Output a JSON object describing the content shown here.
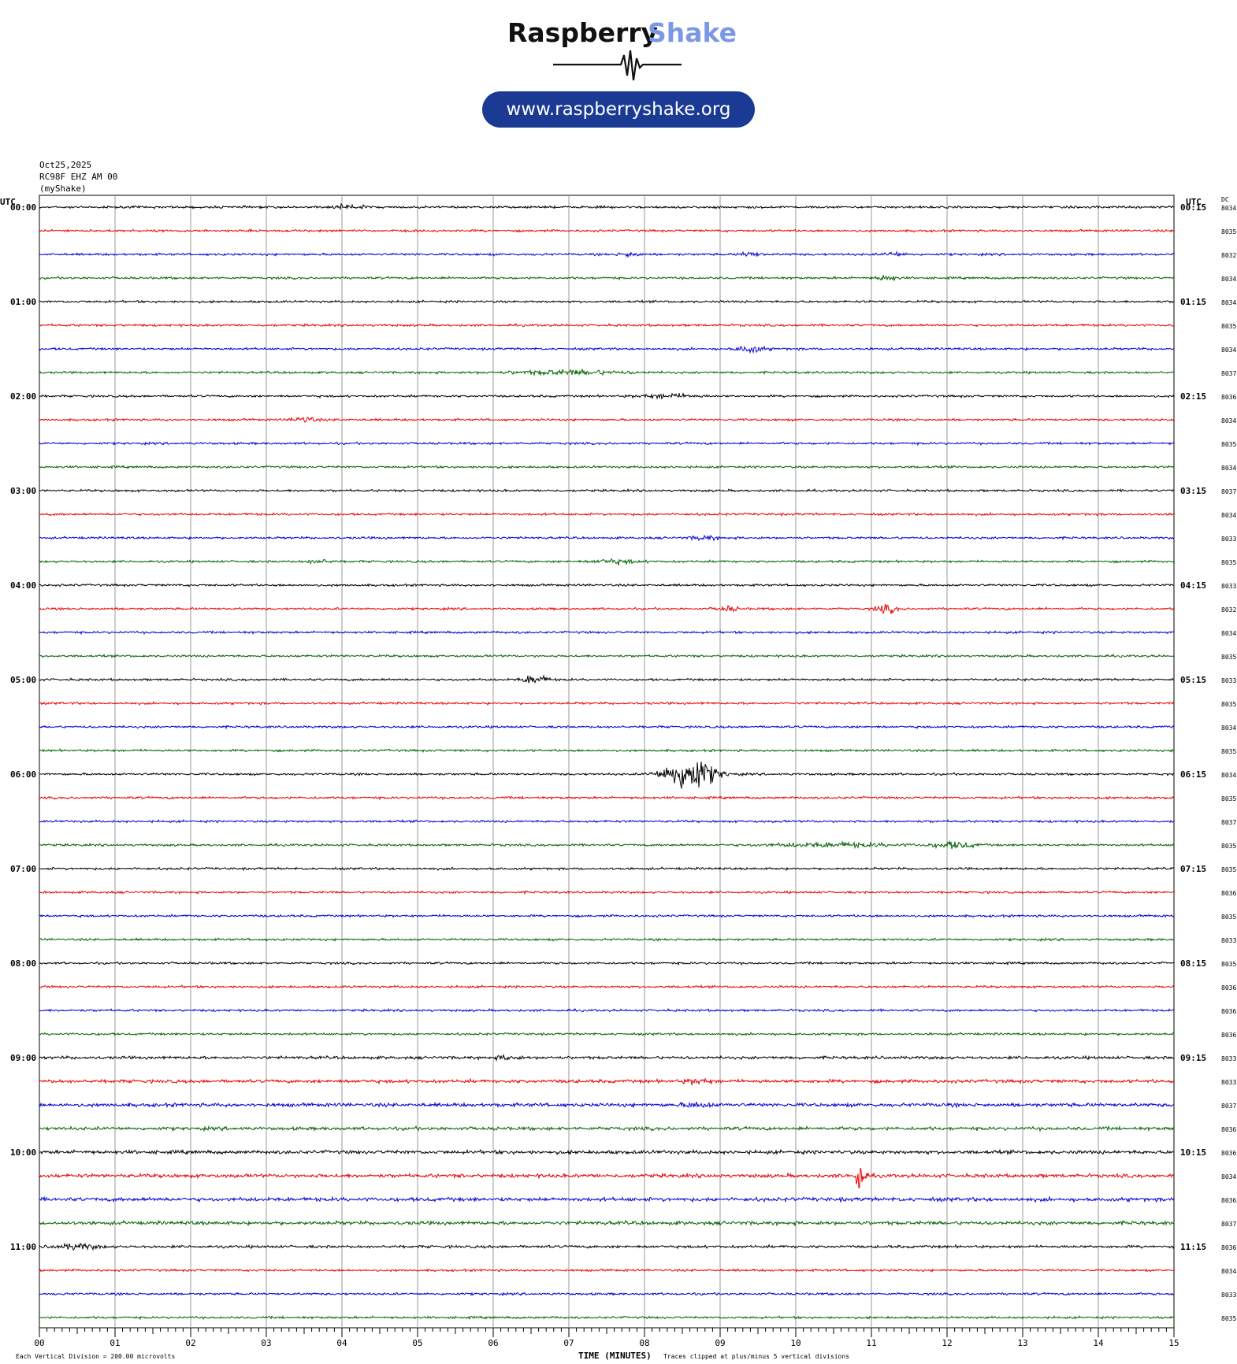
{
  "header": {
    "brand_part1": "Raspberry",
    "brand_part2": "Shake",
    "brand_color1": "#111111",
    "brand_color2": "#7b97e6",
    "website": "www.raspberryshake.org",
    "pill_color": "#1a3a94"
  },
  "meta": {
    "date": "Oct25,2025",
    "station": "RC98F EHZ AM 00",
    "network": "(myShake)"
  },
  "chart_data": {
    "type": "line",
    "description_labels": {
      "left_axis_title": "UTC",
      "right_axis_title": "UTC",
      "dc_title": "DC",
      "xlabel": "TIME (MINUTES)",
      "scale_note": "Each Vertical Division =  200.00 microvolts",
      "clip_note": "Traces clipped at plus/minus 5 vertical divisions"
    },
    "x_ticks": [
      "00",
      "01",
      "02",
      "03",
      "04",
      "05",
      "06",
      "07",
      "08",
      "09",
      "10",
      "11",
      "12",
      "13",
      "14",
      "15"
    ],
    "xlim": [
      0,
      15
    ],
    "minutes_per_trace": 15,
    "trace_colors": [
      "#000000",
      "#e60000",
      "#0000d0",
      "#006400"
    ],
    "left_hour_labels": [
      "00:00",
      "01:00",
      "02:00",
      "03:00",
      "04:00",
      "05:00",
      "06:00",
      "07:00",
      "08:00",
      "09:00",
      "10:00",
      "11:00"
    ],
    "right_hour_labels": [
      "00:15",
      "01:15",
      "02:15",
      "03:15",
      "04:15",
      "05:15",
      "06:15",
      "07:15",
      "08:15",
      "09:15",
      "10:15",
      "11:15"
    ],
    "dc_values": [
      "8034",
      "8035",
      "8032",
      "8034",
      "8034",
      "8035",
      "8034",
      "8037",
      "8036",
      "8034",
      "8035",
      "8034",
      "8037",
      "8034",
      "8033",
      "8035",
      "8033",
      "8032",
      "8034",
      "8035",
      "8033",
      "8035",
      "8034",
      "8035",
      "8034",
      "8035",
      "8037",
      "8035",
      "8035",
      "8036",
      "8035",
      "8033",
      "8035",
      "8036",
      "8036",
      "8036",
      "8033",
      "8033",
      "8037",
      "8036",
      "8036",
      "8034",
      "8036",
      "8037",
      "8036",
      "8034",
      "8033",
      "8035"
    ],
    "events": [
      {
        "trace": 0,
        "minute": 4.1,
        "amp": 1.5,
        "width": 0.4
      },
      {
        "trace": 2,
        "minute": 7.8,
        "amp": 1.3,
        "width": 0.3
      },
      {
        "trace": 2,
        "minute": 9.4,
        "amp": 1.4,
        "width": 0.3
      },
      {
        "trace": 2,
        "minute": 11.3,
        "amp": 1.3,
        "width": 0.3
      },
      {
        "trace": 3,
        "minute": 11.2,
        "amp": 1.8,
        "width": 0.3
      },
      {
        "trace": 6,
        "minute": 9.4,
        "amp": 2.2,
        "width": 0.4
      },
      {
        "trace": 7,
        "minute": 7.0,
        "amp": 1.4,
        "width": 1.6
      },
      {
        "trace": 8,
        "minute": 8.3,
        "amp": 1.3,
        "width": 0.8
      },
      {
        "trace": 9,
        "minute": 3.5,
        "amp": 2.0,
        "width": 0.3
      },
      {
        "trace": 14,
        "minute": 8.8,
        "amp": 1.3,
        "width": 0.4
      },
      {
        "trace": 15,
        "minute": 3.7,
        "amp": 1.4,
        "width": 0.3
      },
      {
        "trace": 15,
        "minute": 7.6,
        "amp": 1.4,
        "width": 0.6
      },
      {
        "trace": 17,
        "minute": 9.1,
        "amp": 1.5,
        "width": 0.3
      },
      {
        "trace": 17,
        "minute": 11.2,
        "amp": 2.5,
        "width": 0.3
      },
      {
        "trace": 20,
        "minute": 6.55,
        "amp": 3.0,
        "width": 0.35
      },
      {
        "trace": 24,
        "minute": 8.6,
        "amp": 12.0,
        "width": 0.7
      },
      {
        "trace": 27,
        "minute": 10.5,
        "amp": 1.3,
        "width": 1.8
      },
      {
        "trace": 27,
        "minute": 12.1,
        "amp": 2.0,
        "width": 0.6
      },
      {
        "trace": 36,
        "minute": 6.2,
        "amp": 1.5,
        "width": 0.3
      },
      {
        "trace": 37,
        "minute": 8.7,
        "amp": 1.4,
        "width": 0.4
      },
      {
        "trace": 38,
        "minute": 8.7,
        "amp": 1.4,
        "width": 0.4
      },
      {
        "trace": 41,
        "minute": 10.85,
        "amp": 14.0,
        "width": 0.12
      },
      {
        "trace": 44,
        "minute": 0.5,
        "amp": 1.6,
        "width": 0.6
      }
    ],
    "noise_level_by_trace": [
      1.0,
      1.0,
      1.0,
      1.0,
      1.0,
      1.0,
      1.0,
      1.0,
      1.0,
      1.0,
      1.0,
      1.0,
      1.0,
      1.0,
      1.0,
      1.0,
      1.0,
      1.0,
      1.0,
      1.0,
      1.0,
      1.0,
      1.0,
      1.0,
      1.0,
      1.0,
      1.0,
      1.0,
      1.0,
      1.0,
      1.0,
      1.0,
      1.0,
      1.0,
      1.0,
      1.0,
      1.3,
      1.5,
      1.6,
      1.5,
      1.6,
      1.6,
      1.7,
      1.6,
      1.2,
      1.0,
      1.0,
      1.0
    ]
  }
}
